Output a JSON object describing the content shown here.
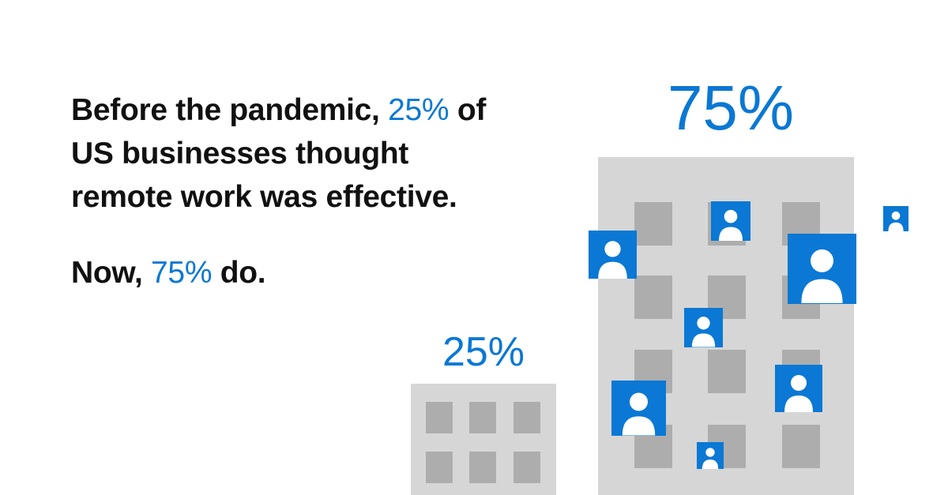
{
  "headline": {
    "part1": "Before the pandemic, ",
    "pct_before": "25%",
    "part2": " of US businesses thought remote work was effective."
  },
  "now_line": {
    "prefix": "Now, ",
    "pct_now": "75%",
    "suffix": " do."
  },
  "illustration": {
    "large_building_label": "75%",
    "small_building_label": "25%"
  },
  "colors": {
    "accent": "#0a78d4",
    "text": "#111111",
    "building": "#d6d6d6",
    "window": "#adadad",
    "background": "#ffffff"
  },
  "icons": [
    "person-icon"
  ]
}
